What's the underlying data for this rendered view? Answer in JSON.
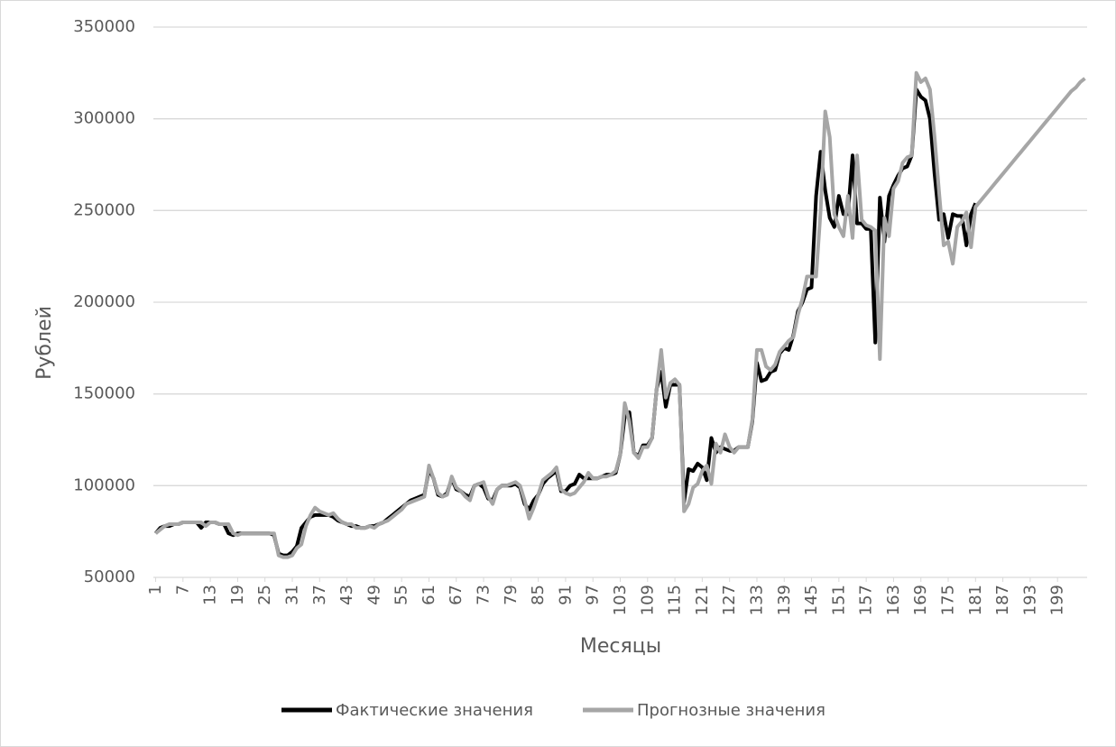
{
  "chart_data": {
    "type": "line",
    "y_label": "Рублей",
    "x_label": "Месяцы",
    "x": [
      1,
      2,
      3,
      4,
      5,
      6,
      7,
      8,
      9,
      10,
      11,
      12,
      13,
      14,
      15,
      16,
      17,
      18,
      19,
      20,
      21,
      22,
      23,
      24,
      25,
      26,
      27,
      28,
      29,
      30,
      31,
      32,
      33,
      34,
      35,
      36,
      37,
      38,
      39,
      40,
      41,
      42,
      43,
      44,
      45,
      46,
      47,
      48,
      49,
      50,
      51,
      52,
      53,
      54,
      55,
      56,
      57,
      58,
      59,
      60,
      61,
      62,
      63,
      64,
      65,
      66,
      67,
      68,
      69,
      70,
      71,
      72,
      73,
      74,
      75,
      76,
      77,
      78,
      79,
      80,
      81,
      82,
      83,
      84,
      85,
      86,
      87,
      88,
      89,
      90,
      91,
      92,
      93,
      94,
      95,
      96,
      97,
      98,
      99,
      100,
      101,
      102,
      103,
      104,
      105,
      106,
      107,
      108,
      109,
      110,
      111,
      112,
      113,
      114,
      115,
      116,
      117,
      118,
      119,
      120,
      121,
      122,
      123,
      124,
      125,
      126,
      127,
      128,
      129,
      130,
      131,
      132,
      133,
      134,
      135,
      136,
      137,
      138,
      139,
      140,
      141,
      142,
      143,
      144,
      145,
      146,
      147,
      148,
      149,
      150,
      151,
      152,
      153,
      154,
      155,
      156,
      157,
      158,
      159,
      160,
      161,
      162,
      163,
      164,
      165,
      166,
      167,
      168,
      169,
      170,
      171,
      172,
      173,
      174,
      175,
      176,
      177,
      178,
      179,
      180,
      181,
      182,
      183,
      184,
      185,
      186,
      187,
      188,
      189,
      190,
      191,
      192,
      193,
      194,
      195,
      196,
      197,
      198,
      199,
      200,
      201,
      202,
      203,
      204,
      205
    ],
    "xlim": [
      0.5,
      205.5
    ],
    "xticks": [
      1,
      7,
      13,
      19,
      25,
      31,
      37,
      43,
      49,
      55,
      61,
      67,
      73,
      79,
      85,
      91,
      97,
      103,
      109,
      115,
      121,
      127,
      133,
      139,
      145,
      151,
      157,
      163,
      169,
      175,
      181,
      187,
      193,
      199
    ],
    "ylim": [
      50000,
      350000
    ],
    "yticks": [
      50000,
      100000,
      150000,
      200000,
      250000,
      300000,
      350000
    ],
    "grid": true,
    "legend": "bottom",
    "series": [
      {
        "name": "Фактические значения",
        "color": "#000000",
        "values": [
          74000,
          77000,
          78000,
          78000,
          79000,
          79000,
          80000,
          80000,
          80000,
          80000,
          77000,
          80000,
          80000,
          80000,
          79000,
          79000,
          74000,
          73000,
          74000,
          74000,
          74000,
          74000,
          74000,
          74000,
          74000,
          74000,
          73000,
          63000,
          62000,
          62000,
          64000,
          67000,
          77000,
          80000,
          83000,
          84000,
          84000,
          84000,
          84000,
          83000,
          81000,
          80000,
          79000,
          78000,
          78000,
          77000,
          77000,
          78000,
          78000,
          79000,
          80000,
          82000,
          84000,
          86000,
          88000,
          90000,
          92000,
          93000,
          94000,
          95000,
          109000,
          104000,
          95000,
          94000,
          96000,
          104000,
          98000,
          97000,
          95000,
          94000,
          100000,
          101000,
          99000,
          93000,
          92000,
          98000,
          100000,
          100000,
          100000,
          101000,
          99000,
          90000,
          87000,
          92000,
          95000,
          101000,
          104000,
          106000,
          108000,
          97000,
          97000,
          100000,
          101000,
          106000,
          104000,
          104000,
          104000,
          104000,
          105000,
          106000,
          106000,
          107000,
          117000,
          138000,
          140000,
          118000,
          116000,
          122000,
          122000,
          126000,
          153000,
          162000,
          143000,
          155000,
          155000,
          155000,
          91000,
          109000,
          108000,
          112000,
          110000,
          103000,
          126000,
          118000,
          121000,
          120000,
          119000,
          119000,
          121000,
          121000,
          121000,
          135000,
          167000,
          157000,
          158000,
          162000,
          163000,
          172000,
          175000,
          174000,
          182000,
          195000,
          200000,
          207000,
          208000,
          258000,
          282000,
          261000,
          246000,
          241000,
          258000,
          248000,
          248000,
          280000,
          243000,
          243000,
          240000,
          240000,
          178000,
          257000,
          233000,
          258000,
          264000,
          269000,
          273000,
          274000,
          280000,
          316000,
          312000,
          310000,
          300000,
          270000,
          245000,
          248000,
          235000,
          248000,
          247000,
          247000,
          231000,
          248000,
          254000,
          null,
          null,
          null,
          null,
          null,
          null,
          null,
          null,
          null,
          null,
          null,
          null,
          null,
          null,
          null,
          null,
          null,
          null,
          null,
          null,
          null,
          null,
          null,
          null
        ]
      },
      {
        "name": "Прогнозные значения",
        "color": "#a6a6a6",
        "values": [
          74000,
          76000,
          78000,
          79000,
          79000,
          79000,
          80000,
          80000,
          80000,
          80000,
          80000,
          78000,
          80000,
          80000,
          79000,
          79000,
          79000,
          74000,
          73000,
          74000,
          74000,
          74000,
          74000,
          74000,
          74000,
          74000,
          74000,
          62000,
          61000,
          61000,
          62000,
          66000,
          68000,
          78000,
          84000,
          88000,
          86000,
          85000,
          84000,
          85000,
          82000,
          80000,
          79000,
          79000,
          77000,
          77000,
          77000,
          78000,
          77000,
          79000,
          80000,
          81000,
          83000,
          85000,
          87000,
          90000,
          91000,
          92000,
          93000,
          94000,
          111000,
          104000,
          96000,
          94000,
          95000,
          105000,
          99000,
          97000,
          94000,
          92000,
          100000,
          101000,
          102000,
          94000,
          90000,
          98000,
          100000,
          100000,
          101000,
          102000,
          100000,
          92000,
          82000,
          88000,
          95000,
          103000,
          105000,
          107000,
          110000,
          98000,
          96000,
          95000,
          96000,
          99000,
          102000,
          107000,
          104000,
          104000,
          105000,
          105000,
          106000,
          108000,
          117000,
          145000,
          135000,
          118000,
          115000,
          121000,
          121000,
          126000,
          153000,
          174000,
          148000,
          156000,
          158000,
          155000,
          86000,
          90000,
          99000,
          101000,
          108000,
          111000,
          101000,
          123000,
          118000,
          128000,
          121000,
          118000,
          121000,
          121000,
          121000,
          136000,
          174000,
          174000,
          165000,
          163000,
          166000,
          173000,
          176000,
          179000,
          181000,
          193000,
          202000,
          214000,
          214000,
          214000,
          250000,
          304000,
          290000,
          248000,
          241000,
          236000,
          258000,
          235000,
          280000,
          245000,
          242000,
          241000,
          239000,
          169000,
          246000,
          236000,
          262000,
          266000,
          276000,
          279000,
          280000,
          325000,
          320000,
          322000,
          316000,
          290000,
          260000,
          231000,
          233000,
          221000,
          241000,
          244000,
          249000,
          230000,
          252000,
          255000,
          258000,
          261000,
          264000,
          267000,
          270000,
          273000,
          276000,
          279000,
          282000,
          285000,
          288000,
          291000,
          294000,
          297000,
          300000,
          303000,
          306000,
          309000,
          312000,
          315000,
          317000,
          320000,
          322000
        ]
      }
    ]
  }
}
